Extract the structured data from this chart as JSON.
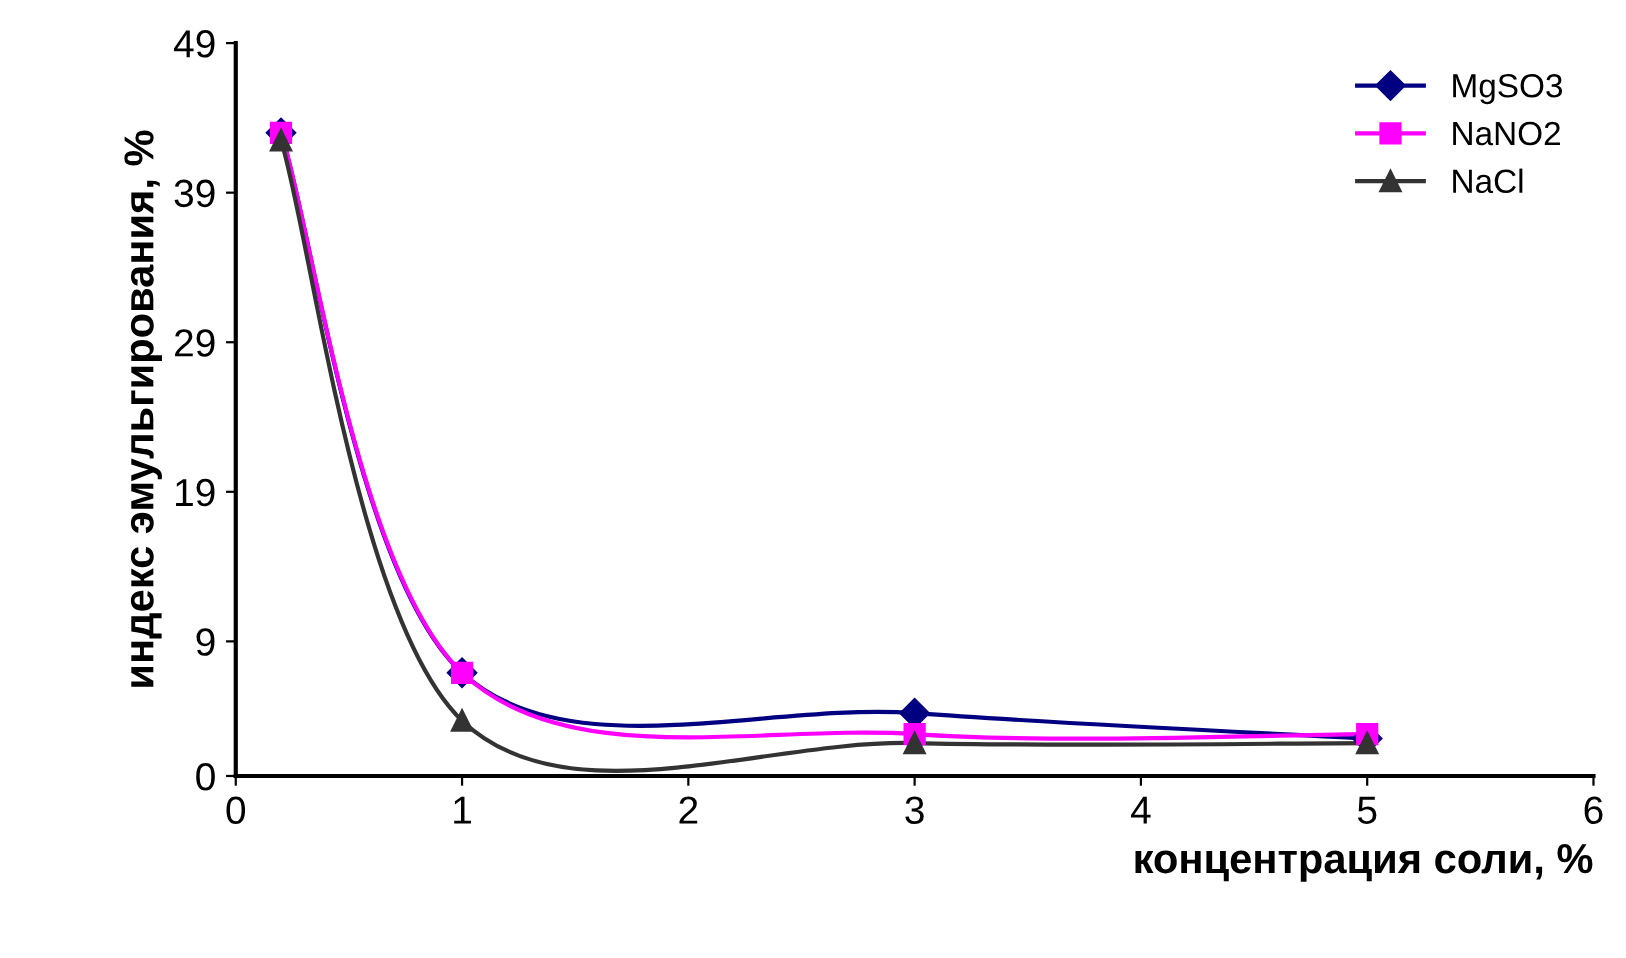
{
  "chart_data": {
    "type": "line",
    "xlabel": "концентрация соли, %",
    "ylabel": "индекс эмульгирования, %",
    "x": [
      0.2,
      1,
      3,
      5
    ],
    "series": [
      {
        "name": "MgSO3",
        "color": "#000080",
        "marker": "diamond",
        "values": [
          43,
          6.9,
          4.2,
          2.5
        ]
      },
      {
        "name": "NaNO2",
        "color": "#ff00ff",
        "marker": "square",
        "values": [
          43,
          6.9,
          2.8,
          2.8
        ]
      },
      {
        "name": "NaCl",
        "color": "#333333",
        "marker": "triangle",
        "values": [
          42.5,
          3.7,
          2.2,
          2.2
        ]
      }
    ],
    "xlim": [
      0,
      6
    ],
    "xticks": [
      0,
      1,
      2,
      3,
      4,
      5,
      6
    ],
    "ylim": [
      0,
      49
    ],
    "yticks": [
      0,
      9,
      19,
      29,
      39,
      49
    ],
    "grid": false,
    "legend": "top right",
    "line_style": "solid"
  }
}
